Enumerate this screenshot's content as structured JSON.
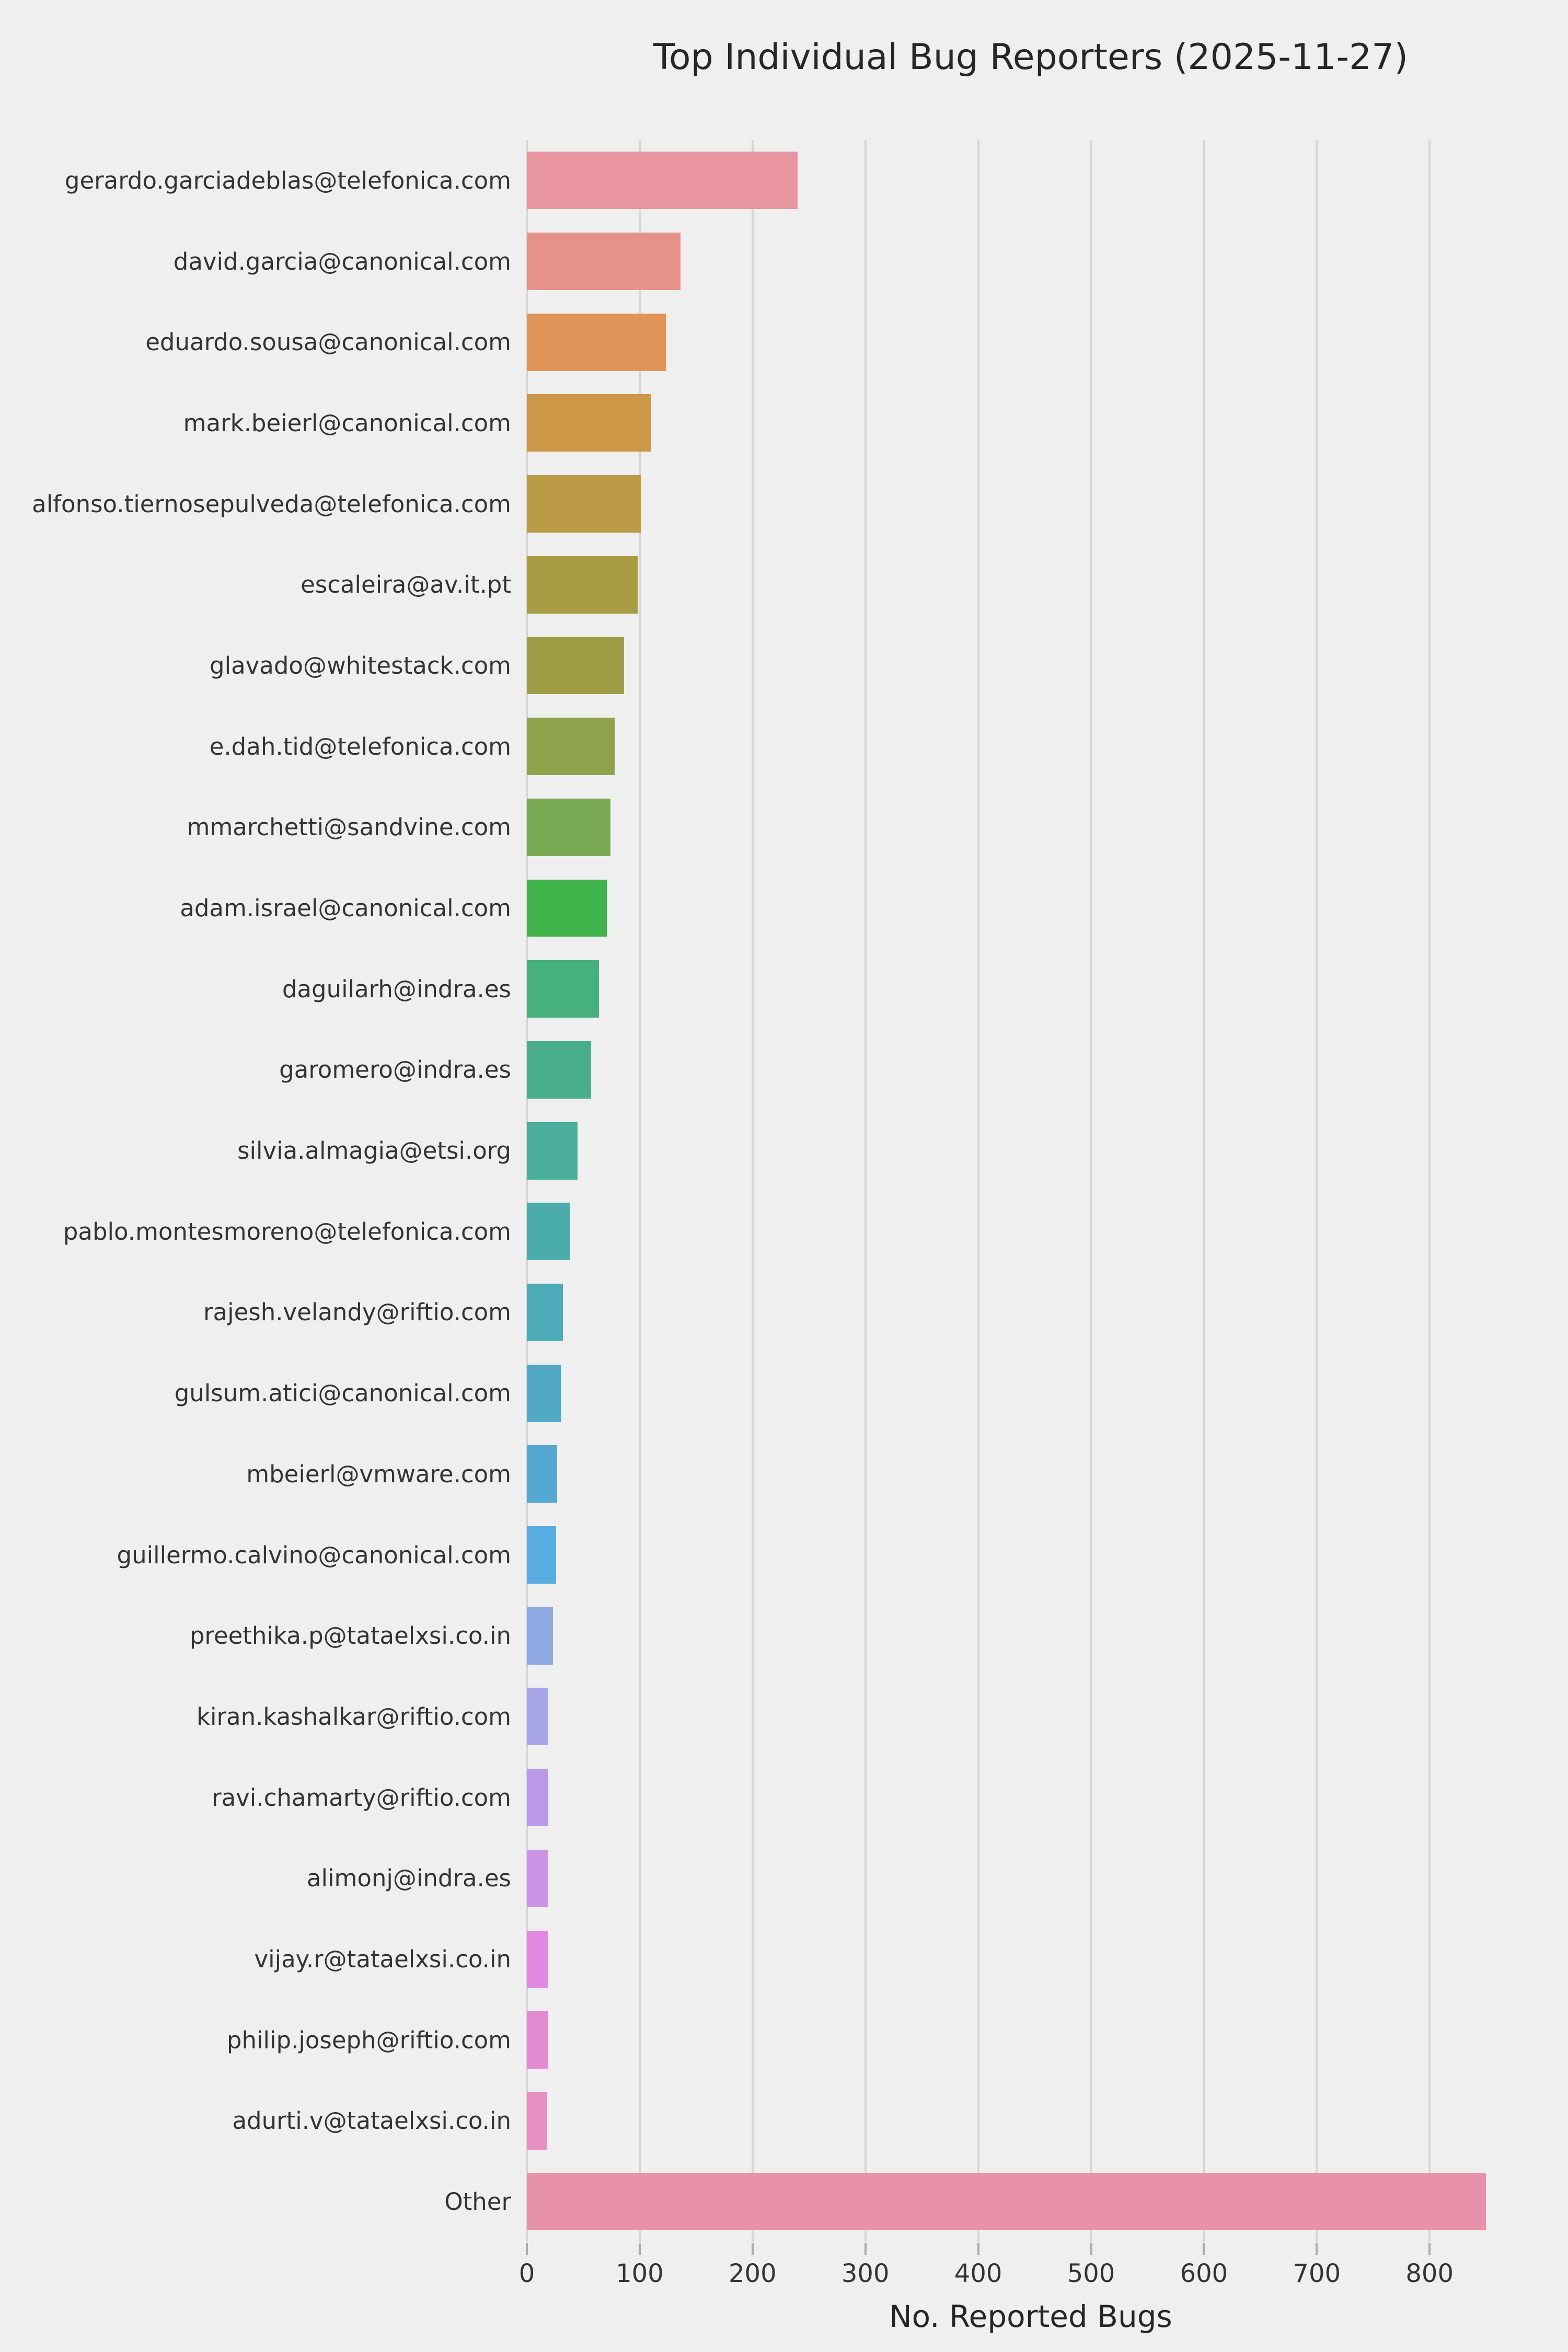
{
  "chart_data": {
    "type": "bar",
    "orientation": "horizontal",
    "title": "Top Individual Bug Reporters (2025-11-27)",
    "xlabel": "No. Reported Bugs",
    "ylabel": "",
    "grid": true,
    "legend": "none",
    "xlim": [
      0,
      893
    ],
    "xticks": [
      0,
      100,
      200,
      300,
      400,
      500,
      600,
      700,
      800
    ],
    "categories": [
      "gerardo.garciadeblas@telefonica.com",
      "david.garcia@canonical.com",
      "eduardo.sousa@canonical.com",
      "mark.beierl@canonical.com",
      "alfonso.tiernosepulveda@telefonica.com",
      "escaleira@av.it.pt",
      "glavado@whitestack.com",
      "e.dah.tid@telefonica.com",
      "mmarchetti@sandvine.com",
      "adam.israel@canonical.com",
      "daguilarh@indra.es",
      "garomero@indra.es",
      "silvia.almagia@etsi.org",
      "pablo.montesmoreno@telefonica.com",
      "rajesh.velandy@riftio.com",
      "gulsum.atici@canonical.com",
      "mbeierl@vmware.com",
      "guillermo.calvino@canonical.com",
      "preethika.p@tataelxsi.co.in",
      "kiran.kashalkar@riftio.com",
      "ravi.chamarty@riftio.com",
      "alimonj@indra.es",
      "vijay.r@tataelxsi.co.in",
      "philip.joseph@riftio.com",
      "adurti.v@tataelxsi.co.in",
      "Other"
    ],
    "values": [
      240,
      136,
      123,
      110,
      101,
      98,
      86,
      78,
      74,
      71,
      64,
      57,
      45,
      38,
      32,
      30,
      27,
      26,
      23,
      19,
      19,
      19,
      19,
      19,
      18,
      850
    ],
    "bar_colors": [
      "#e9959f",
      "#e6928a",
      "#e09458",
      "#cd9748",
      "#bb9b45",
      "#a89c42",
      "#9e9d45",
      "#90a14b",
      "#76a951",
      "#40b44b",
      "#47b17d",
      "#49ae8e",
      "#4bad9b",
      "#4aacab",
      "#4daab8",
      "#50a9c4",
      "#55a8d2",
      "#58ade2",
      "#90aae5",
      "#a9a5e9",
      "#bb99e9",
      "#cb94e6",
      "#e288e3",
      "#e48ad3",
      "#e78fc1",
      "#e891ab"
    ],
    "colors_meta": {
      "background": "#efefef",
      "gridline": "#d6d6d6",
      "tick_mark": "#ababab",
      "text": "#333333",
      "title_text": "#262626"
    }
  }
}
